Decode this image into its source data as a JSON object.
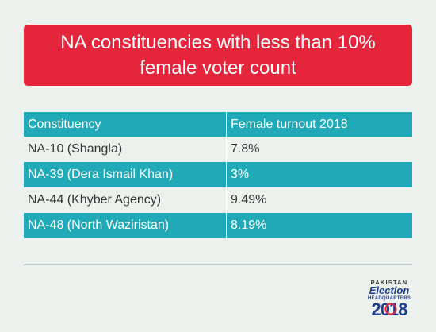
{
  "title_lines": [
    "NA constituencies with less than 10%",
    "female voter count"
  ],
  "chart_data": {
    "type": "table",
    "columns": [
      "Constituency",
      "Female turnout 2018"
    ],
    "rows": [
      [
        "NA-10 (Shangla)",
        "7.8%"
      ],
      [
        "NA-39 (Dera Ismail Khan)",
        "3%"
      ],
      [
        "NA-44 (Khyber Agency)",
        "9.49%"
      ],
      [
        "NA-48 (North Waziristan)",
        "8.19%"
      ]
    ],
    "values": [
      7.8,
      3,
      9.49,
      8.19
    ]
  },
  "logo": {
    "line1": "PAKISTAN",
    "line2": "Election",
    "line3": "HEADQUARTERS",
    "year": "2018"
  },
  "colors": {
    "title_bg": "#e5253c",
    "header_bg": "#20aab7",
    "page_bg": "#edf1ee",
    "logo_red": "#e5253c",
    "logo_blue": "#1f3f8c"
  }
}
